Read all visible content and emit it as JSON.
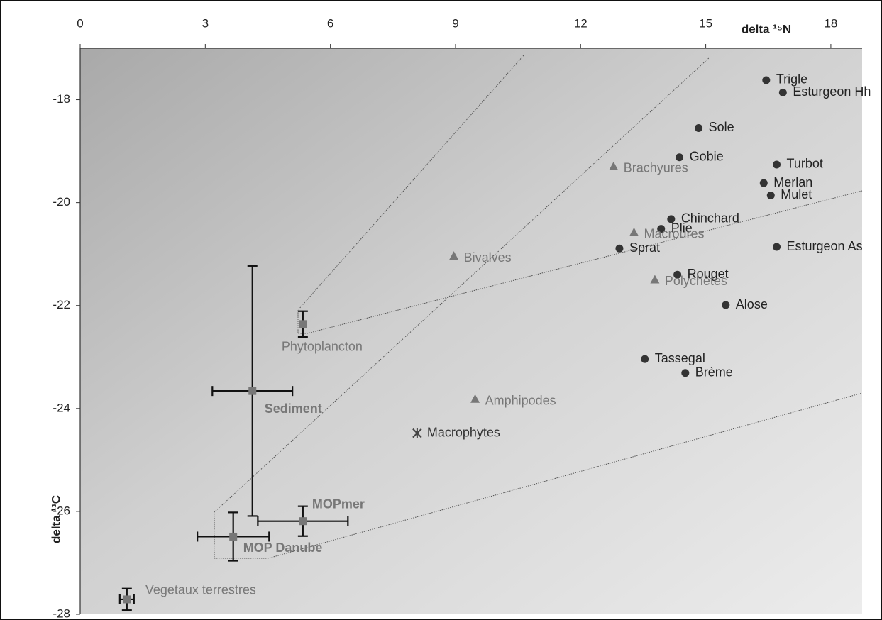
{
  "chart_data": {
    "type": "scatter",
    "xlabel": "delta ¹⁵N",
    "ylabel": "delta ¹³C",
    "xlim": [
      0,
      18.75
    ],
    "ylim": [
      -28,
      -17
    ],
    "xticks": [
      0,
      3,
      6,
      9,
      12,
      15,
      18
    ],
    "yticks": [
      -28,
      -26,
      -24,
      -22,
      -20,
      -18
    ],
    "series": [
      {
        "marker": "circle",
        "color": "#333333",
        "label_color": "#222222",
        "labels": [
          "Trigle",
          "Esturgeon Hh",
          "Sole",
          "Gobie",
          "Turbot",
          "Merlan",
          "Mulet",
          "Chinchard",
          "Plie",
          "Sprat",
          "Esturgeon As",
          "Rouget",
          "Alose",
          "Tassegal",
          "Brème"
        ],
        "x": [
          16.45,
          16.85,
          14.83,
          14.37,
          16.7,
          16.39,
          16.56,
          14.17,
          13.93,
          12.93,
          16.7,
          14.32,
          15.48,
          13.54,
          14.51
        ],
        "values": [
          -17.62,
          -17.86,
          -18.55,
          -19.12,
          -19.26,
          -19.62,
          -19.86,
          -20.32,
          -20.51,
          -20.89,
          -20.86,
          -21.4,
          -21.99,
          -23.04,
          -23.31
        ]
      },
      {
        "marker": "triangle",
        "color": "#777777",
        "label_color": "#777777",
        "labels": [
          "Brachyures",
          "Macroures",
          "Bivalves",
          "Polychètes",
          "Amphipodes"
        ],
        "x": [
          12.79,
          13.28,
          8.96,
          13.78,
          9.47
        ],
        "values": [
          -19.3,
          -20.58,
          -21.04,
          -21.5,
          -23.82
        ]
      },
      {
        "marker": "star",
        "color": "#444444",
        "label_color": "#333333",
        "labels": [
          "Macrophytes"
        ],
        "x": [
          8.08
        ],
        "values": [
          -24.48
        ]
      },
      {
        "marker": "square",
        "color": "#777777",
        "label_color": "#777777",
        "labels": [
          "Phytoplancton",
          "Sediment",
          "MOPmer",
          "MOP Danube",
          "Vegetaux terrestres"
        ],
        "label_weight": [
          "normal",
          "bold",
          "bold",
          "bold",
          "normal"
        ],
        "x": [
          5.34,
          4.13,
          5.34,
          3.67,
          1.12
        ],
        "values": [
          -22.36,
          -23.66,
          -26.19,
          -26.49,
          -27.71
        ],
        "xerr": [
          null,
          0.96,
          1.08,
          0.86,
          0.17
        ],
        "yerr": [
          0.25,
          2.43,
          0.29,
          0.47,
          0.21
        ]
      }
    ]
  }
}
